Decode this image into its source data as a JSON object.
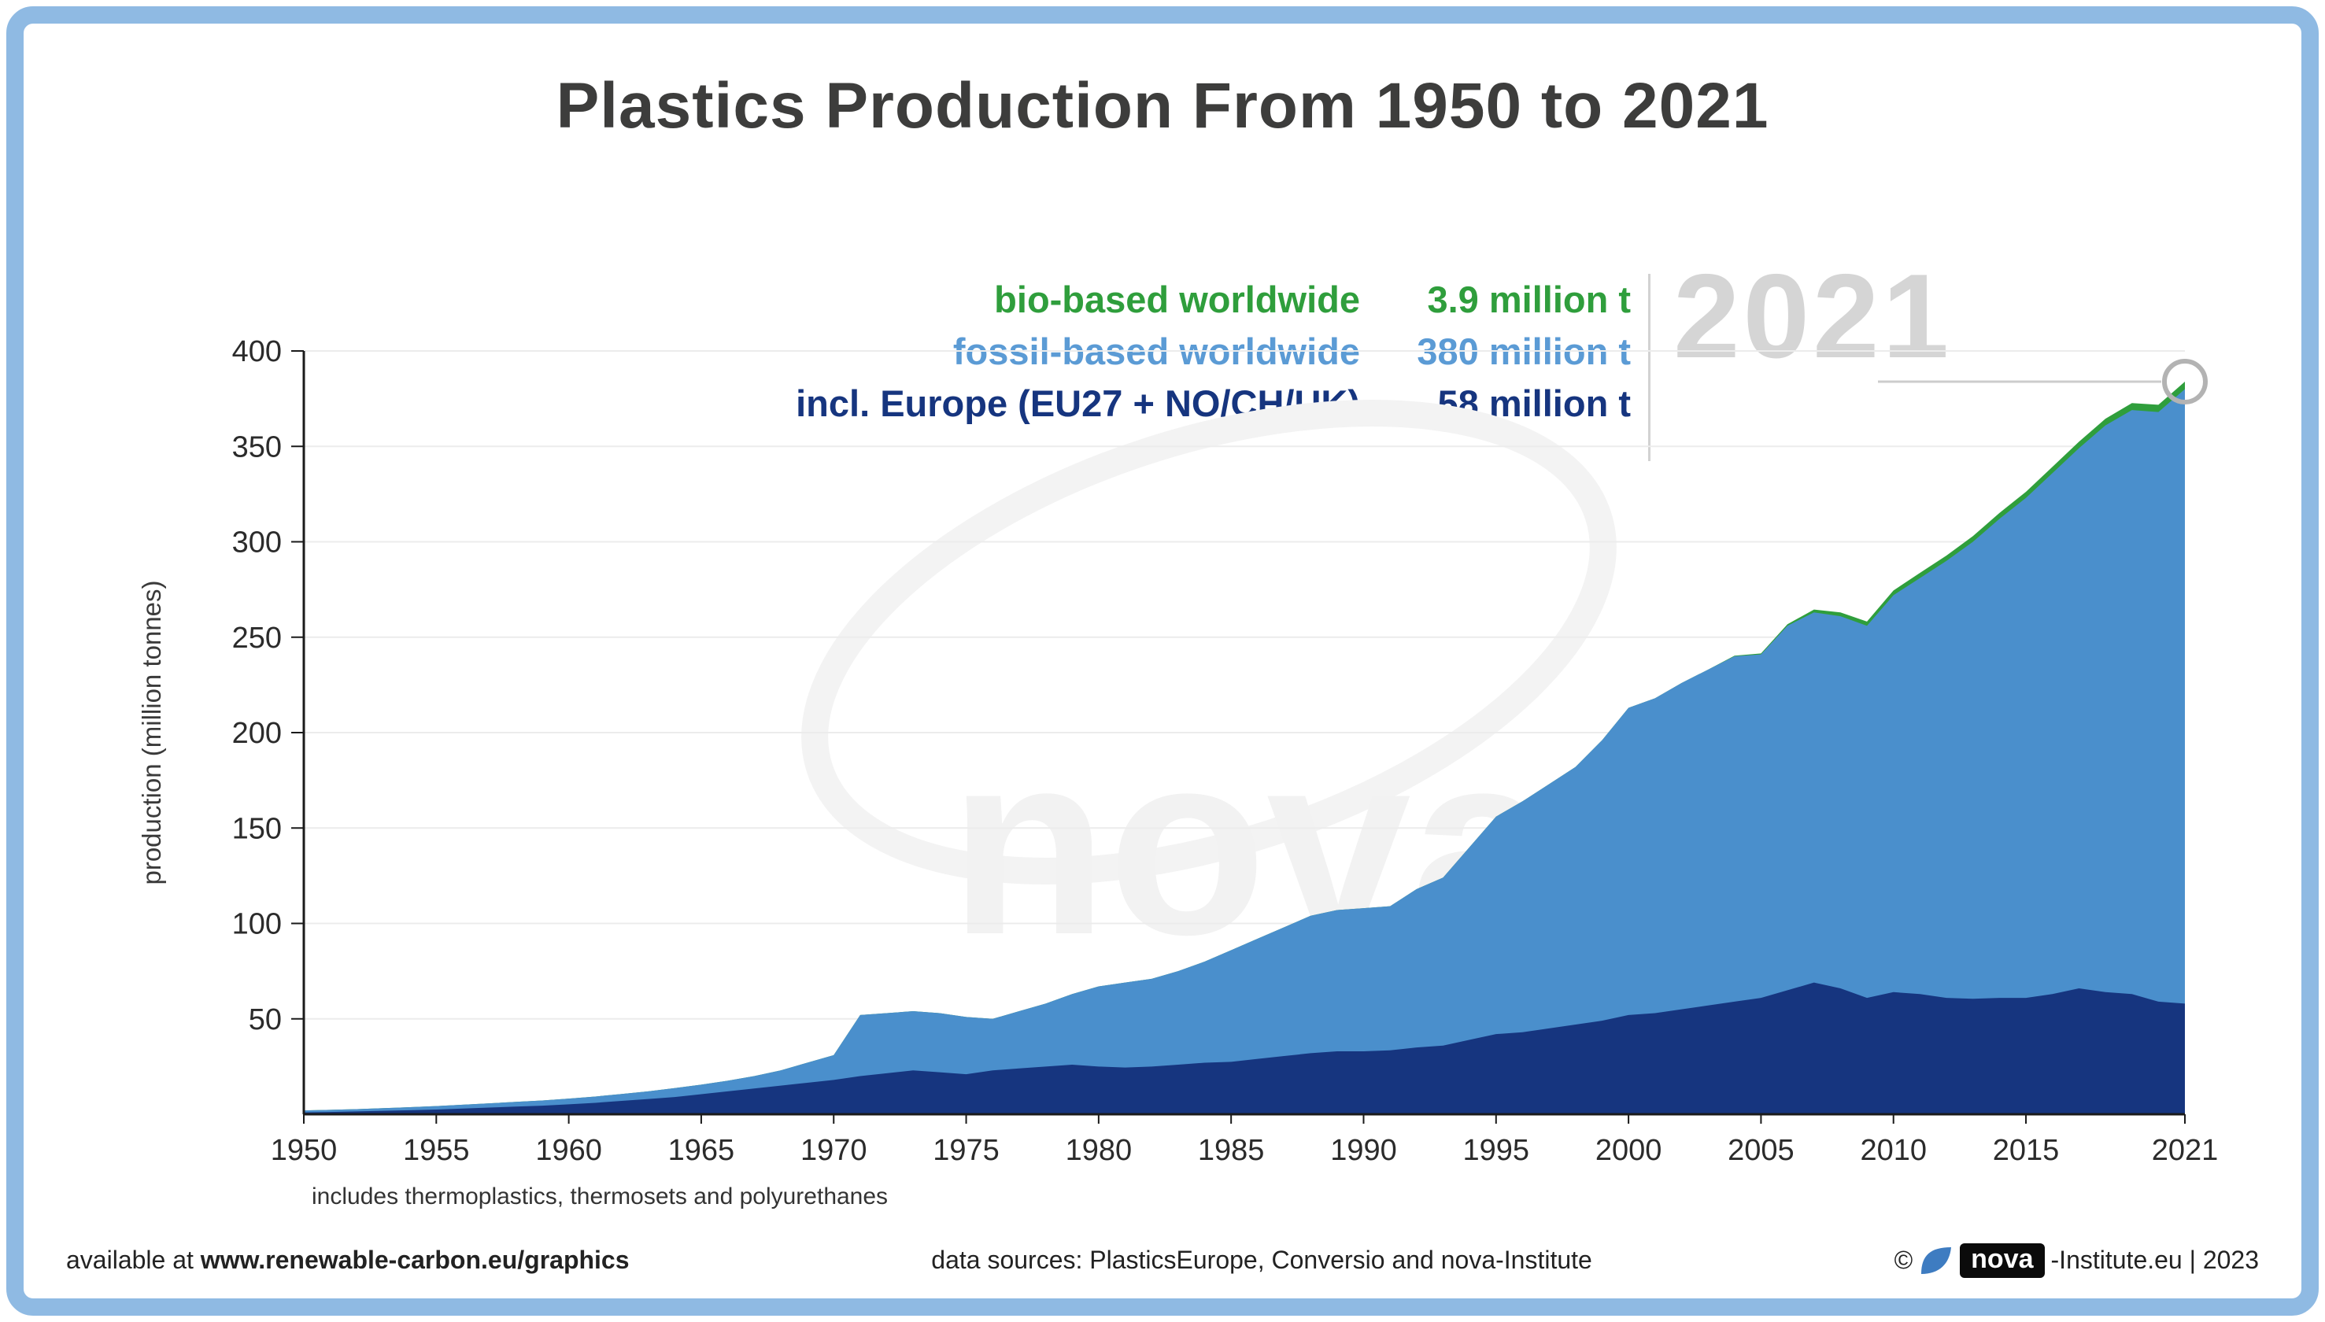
{
  "frame": {
    "border_color": "#8fbae3",
    "background": "#ffffff"
  },
  "title": "Plastics Production From 1950 to 2021",
  "legend": {
    "items": [
      {
        "label": "bio-based worldwide",
        "value": "3.9 million t",
        "color": "#2f9e3c"
      },
      {
        "label": "fossil-based worldwide",
        "value": "380 million t",
        "color": "#5b9bd5"
      },
      {
        "label": "incl. Europe (EU27 + NO/CH/UK)",
        "value": "58 million t",
        "color": "#16357f"
      }
    ],
    "year_watermark": "2021"
  },
  "watermark_text": "nova",
  "chart_data": {
    "type": "area",
    "title": "Plastics Production From 1950 to 2021",
    "xlabel": "",
    "ylabel": "production (million tonnes)",
    "ylim": [
      0,
      400
    ],
    "grid": true,
    "y_ticks": [
      50,
      100,
      150,
      200,
      250,
      300,
      350,
      400
    ],
    "x_ticks": [
      1950,
      1955,
      1960,
      1965,
      1970,
      1975,
      1980,
      1985,
      1990,
      1995,
      2000,
      2005,
      2010,
      2015,
      2021
    ],
    "x": [
      1950,
      1951,
      1952,
      1953,
      1954,
      1955,
      1956,
      1957,
      1958,
      1959,
      1960,
      1961,
      1962,
      1963,
      1964,
      1965,
      1966,
      1967,
      1968,
      1969,
      1970,
      1971,
      1972,
      1973,
      1974,
      1975,
      1976,
      1977,
      1978,
      1979,
      1980,
      1981,
      1982,
      1983,
      1984,
      1985,
      1986,
      1987,
      1988,
      1989,
      1990,
      1991,
      1992,
      1993,
      1994,
      1995,
      1996,
      1997,
      1998,
      1999,
      2000,
      2001,
      2002,
      2003,
      2004,
      2005,
      2006,
      2007,
      2008,
      2009,
      2010,
      2011,
      2012,
      2013,
      2014,
      2015,
      2016,
      2017,
      2018,
      2019,
      2020,
      2021
    ],
    "series": [
      {
        "name": "bio-based worldwide",
        "color": "#2f9e3c",
        "role": "stacked-on-fossil",
        "values": [
          0,
          0,
          0,
          0,
          0,
          0,
          0,
          0,
          0,
          0,
          0,
          0,
          0,
          0,
          0,
          0,
          0,
          0,
          0,
          0,
          0,
          0,
          0,
          0,
          0,
          0,
          0,
          0,
          0,
          0,
          0,
          0,
          0,
          0,
          0,
          0,
          0,
          0,
          0,
          0,
          0,
          0,
          0,
          0,
          0,
          0,
          0,
          0,
          0,
          0,
          0,
          0,
          0,
          0,
          0.3,
          0.5,
          0.8,
          1.5,
          2,
          2.2,
          2.5,
          2.7,
          2.8,
          3,
          3.1,
          3.2,
          3.3,
          3.4,
          3.5,
          3.7,
          3.8,
          3.9
        ]
      },
      {
        "name": "fossil-based worldwide",
        "color": "#4a8fcc",
        "role": "base",
        "values": [
          2,
          2.3,
          2.7,
          3.2,
          3.7,
          4.3,
          5,
          5.7,
          6.5,
          7.2,
          8.2,
          9.3,
          10.6,
          12,
          13.7,
          15.5,
          17.6,
          20,
          23,
          27,
          31,
          52,
          53,
          54,
          53,
          51,
          50,
          54,
          58,
          63,
          67,
          69,
          71,
          75,
          80,
          86,
          92,
          98,
          104,
          107,
          108,
          109,
          118,
          124,
          140,
          156,
          164,
          173,
          182,
          196,
          213,
          218,
          226,
          233,
          240,
          241,
          256,
          263,
          261,
          256,
          272,
          281,
          290,
          300,
          312,
          323,
          336,
          349,
          361,
          369,
          368,
          380
        ]
      },
      {
        "name": "incl. Europe (EU27 + NO/CH/UK)",
        "color": "#16357f",
        "role": "subset-overlay",
        "values": [
          1,
          1.2,
          1.5,
          1.8,
          2.1,
          2.5,
          3,
          3.5,
          4,
          4.5,
          5.2,
          6,
          7,
          8,
          9,
          10.5,
          12,
          13.5,
          15,
          16.5,
          18,
          20,
          21.5,
          23,
          22,
          21,
          23,
          24,
          25,
          26,
          25,
          24.5,
          25,
          26,
          27,
          27.5,
          29,
          30.5,
          32,
          33,
          33,
          33.5,
          35,
          36,
          39,
          42,
          43,
          45,
          47,
          49,
          52,
          53,
          55,
          57,
          59,
          61,
          65,
          69,
          66,
          61,
          64,
          63,
          61,
          60.5,
          61,
          61,
          63,
          66,
          64,
          63,
          59,
          58
        ]
      }
    ],
    "end_marker": {
      "year": 2021,
      "value": 383.9
    }
  },
  "note": "includes thermoplastics, thermosets and polyurethanes",
  "footer": {
    "available_prefix": "available at",
    "available_url": "www.renewable-carbon.eu/graphics",
    "sources": "data sources: PlasticsEurope, Conversio and nova-Institute",
    "credit_prefix": "©",
    "credit_logo": "nova",
    "credit_suffix": "-Institute.eu | 2023"
  }
}
